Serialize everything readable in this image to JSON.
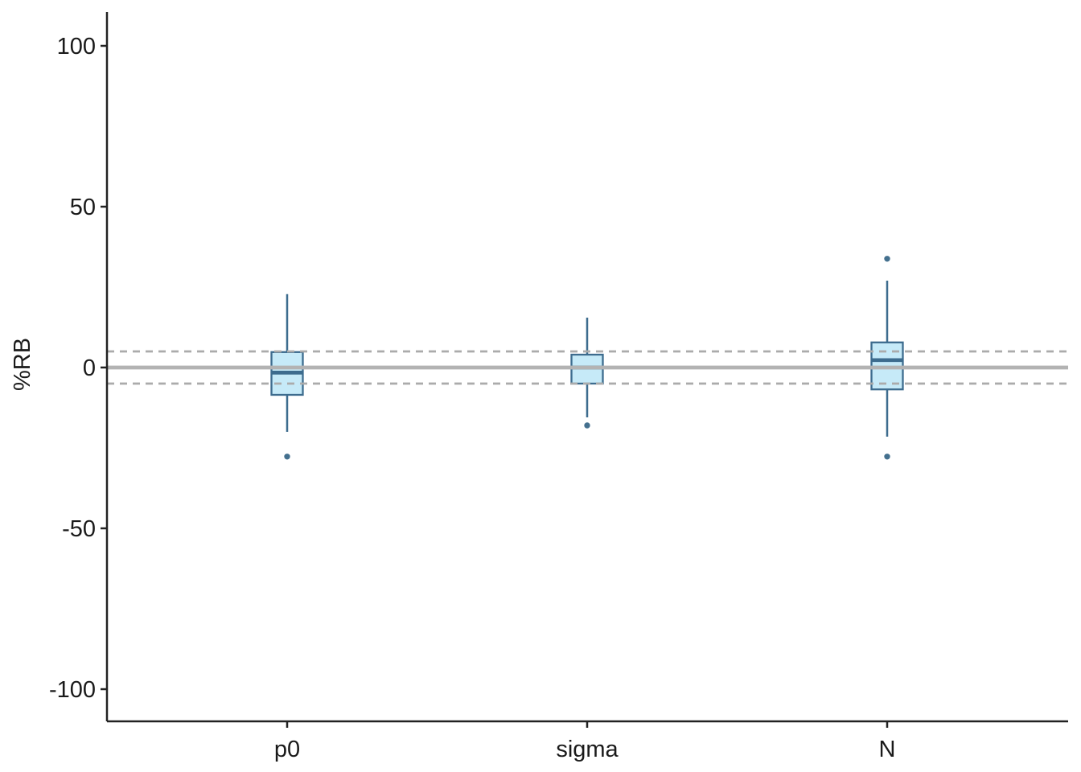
{
  "chart_data": {
    "type": "boxplot",
    "title": "",
    "xlabel": "",
    "ylabel": "%RB",
    "categories": [
      "p0",
      "sigma",
      "N"
    ],
    "y_ticks": [
      100,
      50,
      0,
      -50,
      -100
    ],
    "ylim": [
      -112,
      112
    ],
    "grid": "off",
    "legend": "none",
    "reference_lines": {
      "solid_at": 0,
      "dashed_at": [
        5,
        -5
      ]
    },
    "series": [
      {
        "category": "p0",
        "whisker_low": -20,
        "q1": -8.5,
        "median": -1.6,
        "q3": 4.8,
        "whisker_high": 22.8,
        "outliers": [
          -27.7
        ]
      },
      {
        "category": "sigma",
        "whisker_low": -15.5,
        "q1": -5,
        "median": 0,
        "q3": 4,
        "whisker_high": 15.5,
        "outliers": [
          -18
        ]
      },
      {
        "category": "N",
        "whisker_low": -21.5,
        "q1": -6.8,
        "median": 2.3,
        "q3": 7.8,
        "whisker_high": 27,
        "outliers": [
          33.8,
          -27.7
        ]
      }
    ],
    "colors": {
      "box_fill": "#C6EAF8",
      "box_stroke": "#3D6C8E",
      "median": "#3D6C8E",
      "whisker": "#3D6C8E",
      "outlier": "#44708E",
      "reference_solid": "#B3B3B3",
      "reference_dashed": "#ABABAB",
      "axis": "#222222",
      "text": "#1A1A1A"
    }
  }
}
